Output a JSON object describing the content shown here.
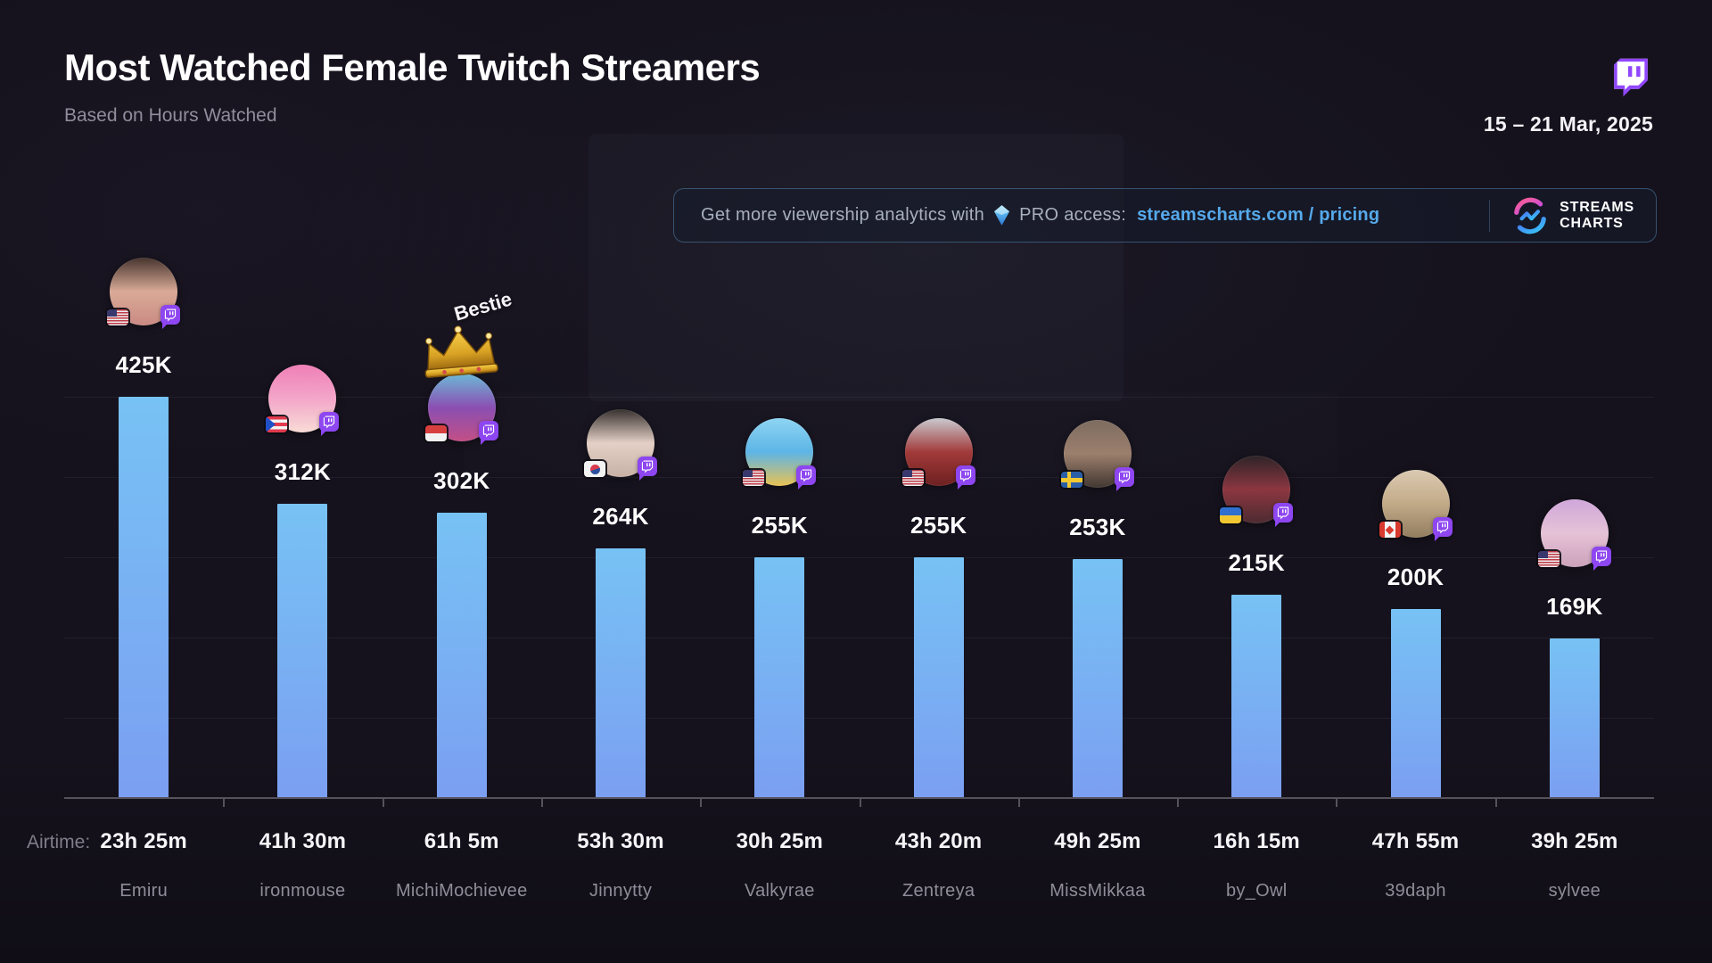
{
  "header": {
    "title": "Most Watched Female Twitch Streamers",
    "subtitle": "Based on Hours Watched",
    "date_range": "15 – 21 Mar, 2025"
  },
  "promo": {
    "prefix": "Get more viewership analytics with",
    "pro_text": "PRO access:",
    "link_text": "streamscharts.com / pricing",
    "link_color": "#56a9ea",
    "brand_top": "STREAMS",
    "brand_bottom": "CHARTS"
  },
  "brand_colors": {
    "twitch_purple": "#9146FF",
    "logo_pink": "#ff5e8e",
    "logo_violet": "#b84af2",
    "logo_blue": "#4a6df5",
    "logo_cyan": "#37c9f5"
  },
  "chart_data": {
    "type": "bar",
    "title": "Most Watched Female Twitch Streamers",
    "subtitle": "Based on Hours Watched",
    "period": "15 – 21 Mar, 2025",
    "metric": "Hours Watched",
    "ylim": [
      0,
      425000
    ],
    "grid": "faint horizontal lines, every 85K",
    "legend_position": "none",
    "airtime_label": "Airtime:",
    "categories": [
      "Emiru",
      "ironmouse",
      "MichiMochievee",
      "Jinnytty",
      "Valkyrae",
      "Zentreya",
      "MissMikkaa",
      "by_Owl",
      "39daph",
      "sylvee"
    ],
    "values": [
      425000,
      312000,
      302000,
      264000,
      255000,
      255000,
      253000,
      215000,
      200000,
      169000
    ],
    "value_labels": [
      "425K",
      "312K",
      "302K",
      "264K",
      "255K",
      "255K",
      "253K",
      "215K",
      "200K",
      "169K"
    ],
    "airtimes": [
      "23h 25m",
      "41h 30m",
      "61h 5m",
      "53h 30m",
      "30h 25m",
      "43h 20m",
      "49h 25m",
      "16h 15m",
      "47h 55m",
      "39h 25m"
    ],
    "countries": [
      "US",
      "PR",
      "ID",
      "KR",
      "US",
      "US",
      "SE",
      "UA",
      "CA",
      "US"
    ],
    "annotation": {
      "category": "MichiMochievee",
      "text": "Bestie",
      "icon": "crown-icon"
    },
    "bar_color_top": "#77c2f4",
    "bar_color_bottom": "#7b9ff2",
    "avatar_gradients": [
      [
        "#46342e",
        "#d9aa96",
        "#ca8a84"
      ],
      [
        "#ef7fb6",
        "#f3a6c9",
        "#f8dcd6"
      ],
      [
        "#6cb9d6",
        "#8a4fb2",
        "#c34f86"
      ],
      [
        "#37312f",
        "#e4d0c6",
        "#c7b1a5"
      ],
      [
        "#8ed5f3",
        "#5db5e6",
        "#e9c253"
      ],
      [
        "#c9c9cf",
        "#a23a3a",
        "#6d2020"
      ],
      [
        "#7d6c60",
        "#9c7f6d",
        "#413731"
      ],
      [
        "#2d2428",
        "#8c3640",
        "#4c2b31"
      ],
      [
        "#dbcab2",
        "#c2aa88",
        "#927d60"
      ],
      [
        "#d0a7da",
        "#e6c2d7",
        "#cba2ba"
      ]
    ]
  }
}
